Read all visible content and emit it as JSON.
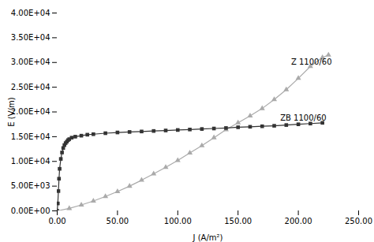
{
  "chart_data": {
    "type": "line",
    "xlabel": "J (A/m²)",
    "ylabel": "E (V/m)",
    "xlim": [
      0,
      250
    ],
    "ylim": [
      0,
      40000
    ],
    "xticks": [
      {
        "value": 0,
        "label": "0.00"
      },
      {
        "value": 50,
        "label": "50.00"
      },
      {
        "value": 100,
        "label": "100.00"
      },
      {
        "value": 150,
        "label": "150.00"
      },
      {
        "value": 200,
        "label": "200.00"
      },
      {
        "value": 250,
        "label": "250.00"
      }
    ],
    "yticks": [
      {
        "value": 0,
        "label": "0.00E+00"
      },
      {
        "value": 5000,
        "label": "5.00E+03"
      },
      {
        "value": 10000,
        "label": "1.00E+04"
      },
      {
        "value": 15000,
        "label": "1.50E+04"
      },
      {
        "value": 20000,
        "label": "2.00E+04"
      },
      {
        "value": 25000,
        "label": "2.50E+04"
      },
      {
        "value": 30000,
        "label": "3.00E+04"
      },
      {
        "value": 35000,
        "label": "3.50E+04"
      },
      {
        "value": 40000,
        "label": "4.00E+04"
      }
    ],
    "grid": false,
    "series": [
      {
        "name": "Z 1100/60",
        "color": "#aaaaaa",
        "marker": "triangle",
        "x": [
          0,
          10,
          20,
          30,
          40,
          50,
          60,
          70,
          80,
          90,
          100,
          110,
          120,
          130,
          140,
          150,
          160,
          170,
          180,
          190,
          200,
          210,
          220,
          225
        ],
        "values": [
          0,
          500,
          1200,
          2000,
          2900,
          3900,
          5000,
          6200,
          7500,
          8800,
          10200,
          11700,
          13200,
          14800,
          16400,
          17800,
          19200,
          20700,
          22500,
          24500,
          26800,
          29200,
          31000,
          31500
        ]
      },
      {
        "name": "ZB 1100/60",
        "color": "#333333",
        "marker": "square",
        "x": [
          0,
          0.5,
          1.0,
          1.5,
          2.0,
          3.0,
          4.0,
          5.0,
          6.0,
          7.0,
          8.0,
          9.0,
          10.0,
          12.0,
          15.0,
          20.0,
          25.0,
          30.0,
          40.0,
          50.0,
          60.0,
          70.0,
          80.0,
          90.0,
          100.0,
          110.0,
          120.0,
          130.0,
          140.0,
          150.0,
          160.0,
          170.0,
          180.0,
          190.0,
          200.0,
          210.0,
          220.0
        ],
        "values": [
          0,
          1500,
          4000,
          6500,
          8500,
          10500,
          11800,
          12700,
          13300,
          13700,
          14000,
          14300,
          14500,
          14800,
          15000,
          15200,
          15400,
          15500,
          15700,
          15850,
          15950,
          16050,
          16150,
          16250,
          16350,
          16450,
          16550,
          16650,
          16750,
          16900,
          17000,
          17100,
          17200,
          17350,
          17500,
          17650,
          17800
        ]
      }
    ],
    "annotations": [
      {
        "text": "Z 1100/60",
        "x": 194,
        "y": 29500
      },
      {
        "text": "ZB 1100/60",
        "x": 185,
        "y": 18200
      }
    ]
  }
}
